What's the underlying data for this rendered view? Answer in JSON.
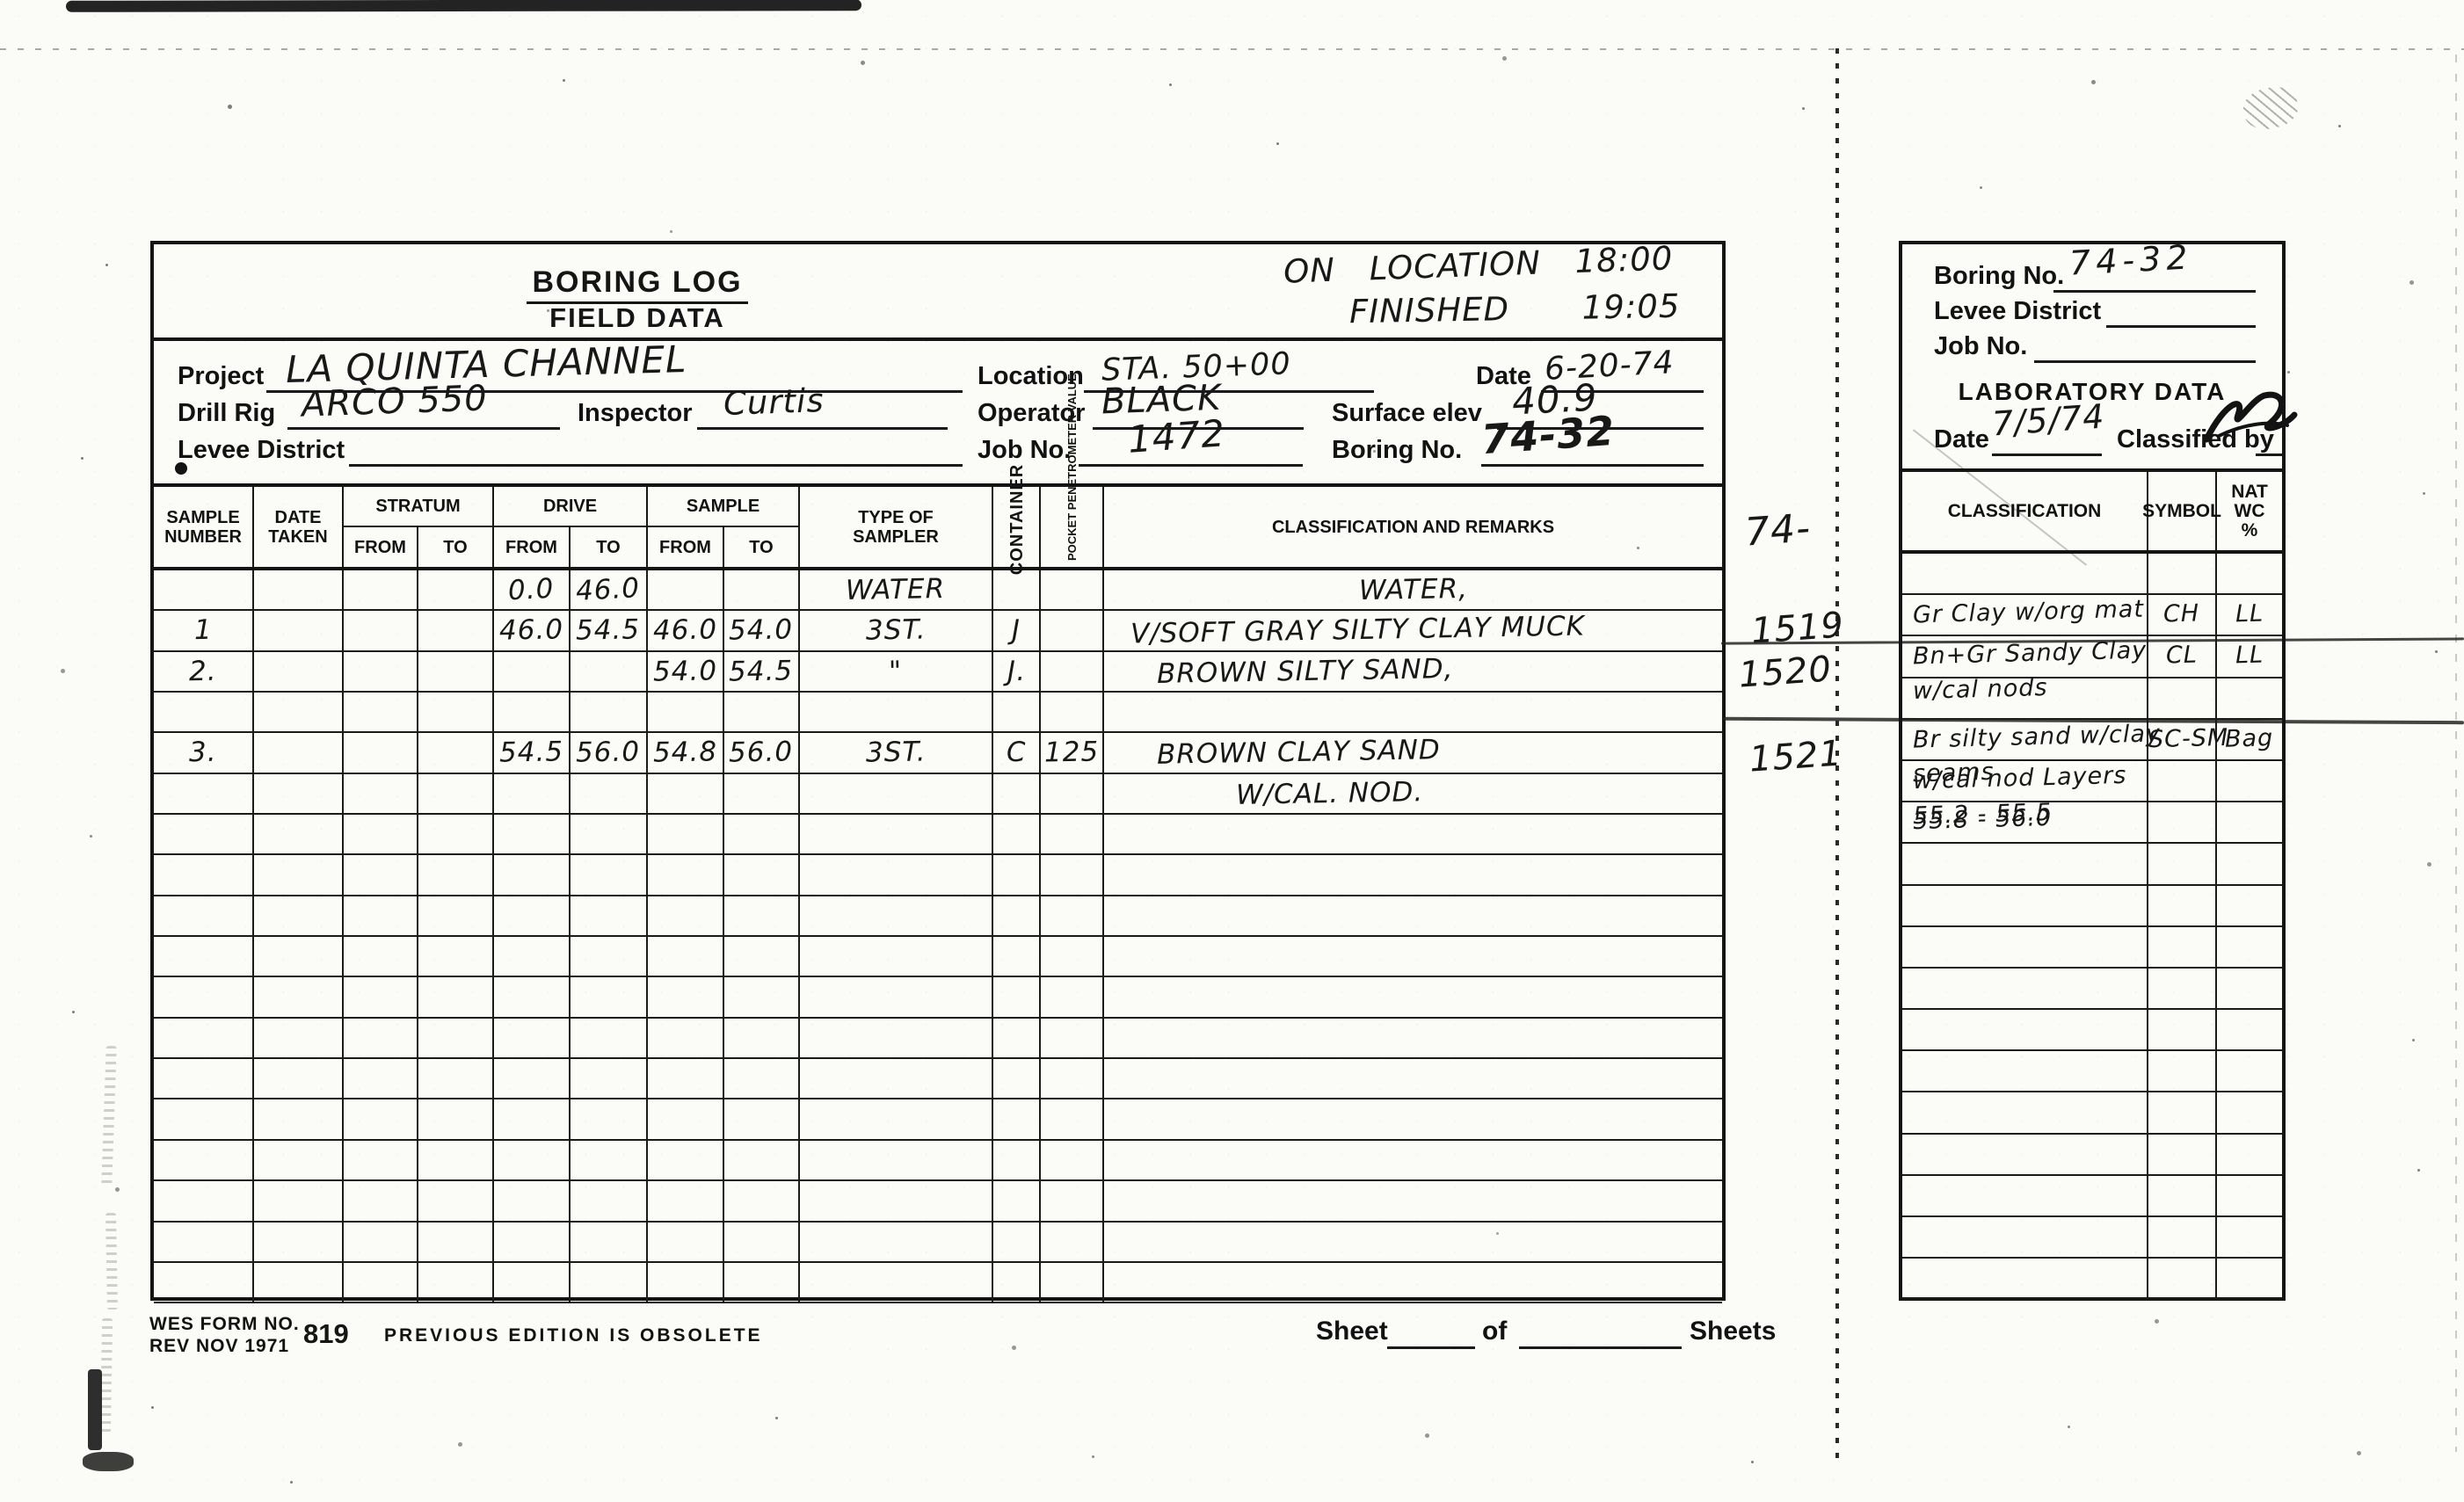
{
  "form": {
    "title": "BORING LOG",
    "subtitle": "FIELD DATA",
    "note": {
      "line1": "ON LOCATION 18:00",
      "line2": "FINISHED 19:05"
    },
    "fields": {
      "project": {
        "label": "Project",
        "value": "LA QUINTA CHANNEL"
      },
      "location": {
        "label": "Location",
        "value": "STA. 50+00"
      },
      "date": {
        "label": "Date",
        "value": "6-20-74"
      },
      "drill_rig": {
        "label": "Drill Rig",
        "value": "ARCO 550"
      },
      "inspector": {
        "label": "Inspector",
        "value": "Curtis"
      },
      "operator": {
        "label": "Operator",
        "value": "BLACK"
      },
      "surface_elev": {
        "label": "Surface elev",
        "value": "40.9"
      },
      "levee_district": {
        "label": "Levee District",
        "value": ""
      },
      "job_no": {
        "label": "Job No.",
        "value": "1472"
      },
      "boring_no": {
        "label": "Boring No.",
        "value": "74-32"
      }
    },
    "table": {
      "headers": {
        "sample_number": "SAMPLE\nNUMBER",
        "date_taken": "DATE\nTAKEN",
        "stratum": "STRATUM",
        "drive": "DRIVE",
        "sample": "SAMPLE",
        "from": "FROM",
        "to": "TO",
        "type_of_sampler": "TYPE OF\nSAMPLER",
        "container": "CONTAINER",
        "pocket_penetrometer": "POCKET\nPENETROMETER\nVALUE",
        "classification": "CLASSIFICATION AND REMARKS"
      },
      "columns": [
        "sample",
        "date",
        "stratum_from",
        "stratum_to",
        "drive_from",
        "drive_to",
        "sample_from",
        "sample_to",
        "sampler",
        "container",
        "pocket",
        "remarks"
      ],
      "rows": [
        {
          "drive_from": "0.0",
          "drive_to": "46.0",
          "sampler": "WATER",
          "remarks": [
            "WATER,"
          ]
        },
        {
          "sample": "1",
          "drive_from": "46.0",
          "drive_to": "54.5",
          "sample_from": "46.0",
          "sample_to": "54.0",
          "sampler": "3ST.",
          "container": "J",
          "remarks": [
            "V/SOFT GRAY SILTY CLAY MUCK"
          ]
        },
        {
          "sample": "2.",
          "sample_from": "54.0",
          "sample_to": "54.5",
          "sampler": "\"",
          "container": "J.",
          "remarks": [
            "BROWN SILTY SAND,"
          ]
        },
        {},
        {
          "sample": "3.",
          "drive_from": "54.5",
          "drive_to": "56.0",
          "sample_from": "54.8",
          "sample_to": "56.0",
          "sampler": "3ST.",
          "container": "C",
          "pocket": "125",
          "remarks": [
            "BROWN CLAY SAND"
          ]
        },
        {
          "remarks": [
            "W/CAL. NOD."
          ]
        },
        {},
        {},
        {},
        {},
        {},
        {},
        {},
        {},
        {},
        {},
        {},
        {}
      ]
    },
    "margin_notes": {
      "top": "74-",
      "r1": "1519",
      "r2": "1520",
      "r3": "1521"
    },
    "footer": {
      "wes_1": "WES FORM NO.",
      "wes_2": "REV NOV 1971",
      "number": "819",
      "obsolete": "PREVIOUS EDITION IS OBSOLETE",
      "sheet": "Sheet",
      "of": "of",
      "sheets": "Sheets"
    }
  },
  "lab_panel": {
    "fields": {
      "boring_no": {
        "label": "Boring No.",
        "value": "74-32"
      },
      "levee_district": {
        "label": "Levee District",
        "value": ""
      },
      "job_no": {
        "label": "Job No.",
        "value": ""
      }
    },
    "title": "LABORATORY DATA",
    "date": {
      "label": "Date",
      "value": "7/5/74"
    },
    "classified_by": {
      "label": "Classified by"
    },
    "table": {
      "headers": {
        "classification": "CLASSIFICATION",
        "symbol": "SYMBOL",
        "nat_wc": "NAT WC\n%"
      },
      "columns": [
        "classification",
        "symbol",
        "natwc"
      ],
      "rows": [
        {},
        {
          "classification": [
            "Gr Clay w/org mat"
          ],
          "symbol": "CH",
          "natwc": "LL"
        },
        {
          "classification": [
            "Bn+Gr Sandy Clay",
            "w/cal nods"
          ],
          "symbol": "CL",
          "natwc": "LL"
        },
        {},
        {
          "classification": [
            "Br silty sand w/clay",
            "seams"
          ],
          "symbol": "SC-SM",
          "natwc": "Bag"
        },
        {
          "classification": [
            "w/cal nod Layers",
            "55.2 - 55.5"
          ]
        },
        {
          "classification": [
            "55.8 - 56.0"
          ]
        },
        {},
        {},
        {},
        {},
        {},
        {},
        {},
        {},
        {},
        {},
        {}
      ]
    }
  }
}
